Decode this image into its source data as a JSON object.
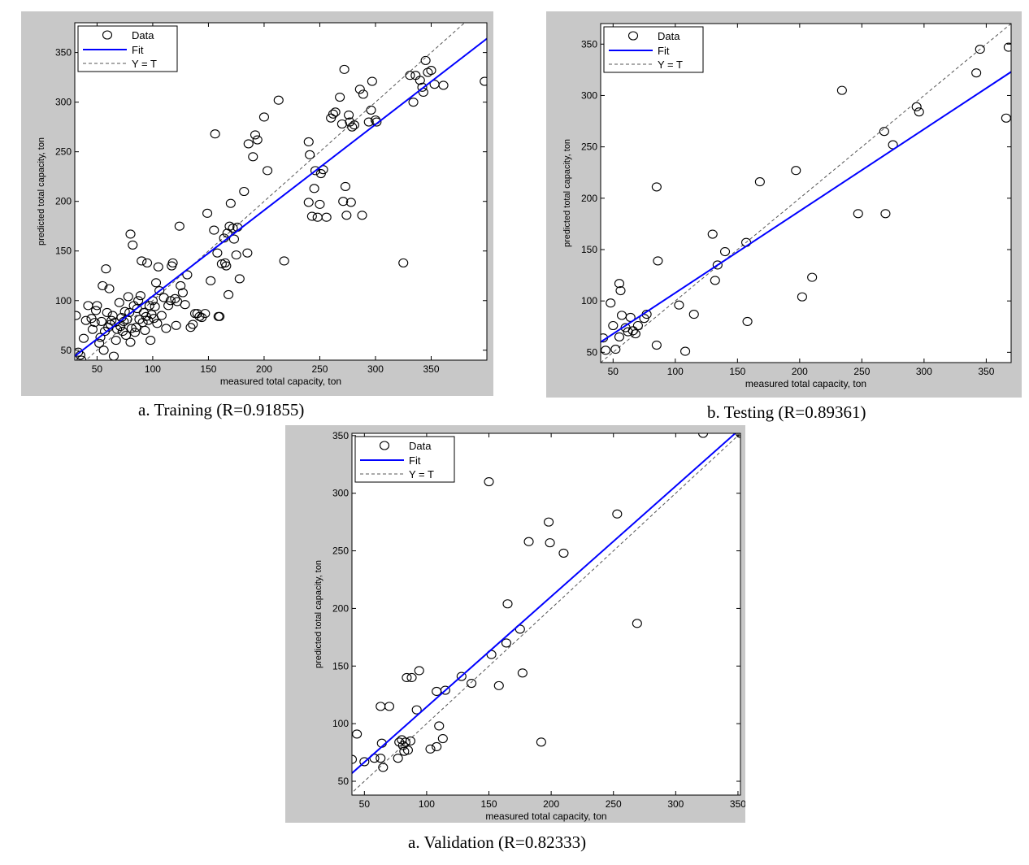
{
  "charts": [
    {
      "caption": "a. Training (R=0.91855)",
      "chart_data": {
        "type": "scatter",
        "xlabel": "measured total capacity, ton",
        "ylabel": "predicted total capacity, ton",
        "xlim": [
          30,
          400
        ],
        "ylim": [
          40,
          380
        ],
        "xticks": [
          50,
          100,
          150,
          200,
          250,
          300,
          350
        ],
        "yticks": [
          50,
          100,
          150,
          200,
          250,
          300,
          350
        ],
        "legend": {
          "placement": "top-left",
          "entries": [
            "Data",
            "Fit",
            "Y = T"
          ]
        },
        "fit": {
          "x": [
            30,
            400
          ],
          "y": [
            44,
            364
          ]
        },
        "points": [
          [
            31,
            85
          ],
          [
            33,
            48
          ],
          [
            35,
            45
          ],
          [
            36,
            40
          ],
          [
            38,
            62
          ],
          [
            40,
            80
          ],
          [
            42,
            95
          ],
          [
            43,
            36
          ],
          [
            45,
            82
          ],
          [
            46,
            71
          ],
          [
            48,
            78
          ],
          [
            49,
            90
          ],
          [
            50,
            95
          ],
          [
            52,
            57
          ],
          [
            53,
            63
          ],
          [
            54,
            79
          ],
          [
            55,
            115
          ],
          [
            56,
            50
          ],
          [
            57,
            69
          ],
          [
            58,
            132
          ],
          [
            59,
            88
          ],
          [
            60,
            73
          ],
          [
            61,
            112
          ],
          [
            62,
            76
          ],
          [
            63,
            80
          ],
          [
            64,
            85
          ],
          [
            65,
            44
          ],
          [
            66,
            78
          ],
          [
            67,
            60
          ],
          [
            68,
            71
          ],
          [
            70,
            98
          ],
          [
            71,
            74
          ],
          [
            72,
            83
          ],
          [
            73,
            69
          ],
          [
            74,
            79
          ],
          [
            75,
            89
          ],
          [
            76,
            65
          ],
          [
            77,
            81
          ],
          [
            78,
            104
          ],
          [
            79,
            88
          ],
          [
            80,
            58
          ],
          [
            80,
            167
          ],
          [
            81,
            72
          ],
          [
            82,
            156
          ],
          [
            83,
            95
          ],
          [
            84,
            68
          ],
          [
            85,
            73
          ],
          [
            86,
            92
          ],
          [
            87,
            100
          ],
          [
            88,
            81
          ],
          [
            89,
            105
          ],
          [
            90,
            140
          ],
          [
            91,
            78
          ],
          [
            92,
            88
          ],
          [
            93,
            70
          ],
          [
            94,
            84
          ],
          [
            95,
            138
          ],
          [
            96,
            80
          ],
          [
            97,
            95
          ],
          [
            98,
            60
          ],
          [
            99,
            86
          ],
          [
            100,
            100
          ],
          [
            101,
            82
          ],
          [
            102,
            94
          ],
          [
            103,
            118
          ],
          [
            104,
            77
          ],
          [
            105,
            134
          ],
          [
            106,
            110
          ],
          [
            108,
            85
          ],
          [
            110,
            103
          ],
          [
            112,
            72
          ],
          [
            114,
            95
          ],
          [
            116,
            100
          ],
          [
            117,
            135
          ],
          [
            118,
            138
          ],
          [
            120,
            102
          ],
          [
            121,
            75
          ],
          [
            122,
            99
          ],
          [
            124,
            175
          ],
          [
            125,
            115
          ],
          [
            127,
            108
          ],
          [
            129,
            96
          ],
          [
            131,
            126
          ],
          [
            134,
            73
          ],
          [
            136,
            76
          ],
          [
            138,
            87
          ],
          [
            140,
            87
          ],
          [
            142,
            84
          ],
          [
            144,
            83
          ],
          [
            147,
            87
          ],
          [
            149,
            188
          ],
          [
            152,
            120
          ],
          [
            155,
            171
          ],
          [
            156,
            268
          ],
          [
            158,
            148
          ],
          [
            159,
            84
          ],
          [
            160,
            84
          ],
          [
            162,
            137
          ],
          [
            164,
            163
          ],
          [
            165,
            138
          ],
          [
            166,
            135
          ],
          [
            167,
            168
          ],
          [
            168,
            106
          ],
          [
            169,
            175
          ],
          [
            170,
            198
          ],
          [
            172,
            173
          ],
          [
            173,
            162
          ],
          [
            175,
            146
          ],
          [
            176,
            174
          ],
          [
            178,
            122
          ],
          [
            182,
            210
          ],
          [
            185,
            148
          ],
          [
            186,
            258
          ],
          [
            190,
            245
          ],
          [
            192,
            267
          ],
          [
            194,
            262
          ],
          [
            200,
            285
          ],
          [
            203,
            231
          ],
          [
            213,
            302
          ],
          [
            218,
            140
          ],
          [
            240,
            199
          ],
          [
            240,
            260
          ],
          [
            241,
            247
          ],
          [
            243,
            185
          ],
          [
            245,
            213
          ],
          [
            246,
            231
          ],
          [
            248,
            184
          ],
          [
            250,
            197
          ],
          [
            251,
            228
          ],
          [
            253,
            232
          ],
          [
            256,
            184
          ],
          [
            260,
            284
          ],
          [
            262,
            288
          ],
          [
            264,
            290
          ],
          [
            268,
            305
          ],
          [
            270,
            278
          ],
          [
            271,
            200
          ],
          [
            272,
            333
          ],
          [
            273,
            215
          ],
          [
            274,
            186
          ],
          [
            276,
            287
          ],
          [
            277,
            280
          ],
          [
            278,
            199
          ],
          [
            279,
            275
          ],
          [
            281,
            277
          ],
          [
            286,
            313
          ],
          [
            288,
            186
          ],
          [
            289,
            308
          ],
          [
            294,
            280
          ],
          [
            296,
            292
          ],
          [
            297,
            321
          ],
          [
            300,
            282
          ],
          [
            301,
            280
          ],
          [
            325,
            138
          ],
          [
            331,
            327
          ],
          [
            334,
            300
          ],
          [
            336,
            327
          ],
          [
            340,
            322
          ],
          [
            342,
            315
          ],
          [
            343,
            310
          ],
          [
            345,
            342
          ],
          [
            347,
            330
          ],
          [
            350,
            332
          ],
          [
            353,
            318
          ],
          [
            361,
            317
          ],
          [
            398,
            321
          ]
        ]
      }
    },
    {
      "caption": "b. Testing (R=0.89361)",
      "chart_data": {
        "type": "scatter",
        "xlabel": "measured total capacity, ton",
        "ylabel": "predicted total capacity, ton",
        "xlim": [
          40,
          370
        ],
        "ylim": [
          40,
          370
        ],
        "xticks": [
          50,
          100,
          150,
          200,
          250,
          300,
          350
        ],
        "yticks": [
          50,
          100,
          150,
          200,
          250,
          300,
          350
        ],
        "legend": {
          "placement": "top-left",
          "entries": [
            "Data",
            "Fit",
            "Y = T"
          ]
        },
        "fit": {
          "x": [
            40,
            370
          ],
          "y": [
            60,
            323
          ]
        },
        "points": [
          [
            42,
            64
          ],
          [
            44,
            52
          ],
          [
            48,
            98
          ],
          [
            50,
            76
          ],
          [
            52,
            53
          ],
          [
            55,
            65
          ],
          [
            55,
            117
          ],
          [
            56,
            110
          ],
          [
            57,
            86
          ],
          [
            60,
            74
          ],
          [
            62,
            70
          ],
          [
            64,
            84
          ],
          [
            66,
            71
          ],
          [
            68,
            68
          ],
          [
            70,
            76
          ],
          [
            75,
            83
          ],
          [
            77,
            87
          ],
          [
            85,
            57
          ],
          [
            85,
            211
          ],
          [
            86,
            139
          ],
          [
            103,
            96
          ],
          [
            108,
            51
          ],
          [
            115,
            87
          ],
          [
            130,
            165
          ],
          [
            132,
            120
          ],
          [
            134,
            135
          ],
          [
            140,
            148
          ],
          [
            157,
            157
          ],
          [
            158,
            80
          ],
          [
            168,
            216
          ],
          [
            197,
            227
          ],
          [
            202,
            104
          ],
          [
            210,
            123
          ],
          [
            234,
            305
          ],
          [
            247,
            185
          ],
          [
            268,
            265
          ],
          [
            269,
            185
          ],
          [
            275,
            252
          ],
          [
            294,
            289
          ],
          [
            296,
            284
          ],
          [
            342,
            322
          ],
          [
            345,
            345
          ],
          [
            366,
            278
          ],
          [
            368,
            347
          ]
        ]
      }
    },
    {
      "caption": "a. Validation (R=0.82333)",
      "chart_data": {
        "type": "scatter",
        "xlabel": "measured total capacity, ton",
        "ylabel": "predicted total capacity, ton",
        "xlim": [
          40,
          352
        ],
        "ylim": [
          38,
          352
        ],
        "xticks": [
          50,
          100,
          150,
          200,
          250,
          300,
          350
        ],
        "yticks": [
          50,
          100,
          150,
          200,
          250,
          300,
          350
        ],
        "legend": {
          "placement": "top-left",
          "entries": [
            "Data",
            "Fit",
            "Y = T"
          ]
        },
        "fit": {
          "x": [
            40,
            352
          ],
          "y": [
            57,
            356
          ]
        },
        "points": [
          [
            40,
            69
          ],
          [
            44,
            91
          ],
          [
            50,
            67
          ],
          [
            58,
            70
          ],
          [
            63,
            115
          ],
          [
            63,
            70
          ],
          [
            64,
            83
          ],
          [
            65,
            62
          ],
          [
            70,
            115
          ],
          [
            77,
            70
          ],
          [
            78,
            84
          ],
          [
            80,
            86
          ],
          [
            81,
            81
          ],
          [
            82,
            76
          ],
          [
            83,
            84
          ],
          [
            84,
            140
          ],
          [
            85,
            77
          ],
          [
            87,
            85
          ],
          [
            88,
            140
          ],
          [
            92,
            112
          ],
          [
            94,
            146
          ],
          [
            103,
            78
          ],
          [
            108,
            80
          ],
          [
            108,
            128
          ],
          [
            110,
            98
          ],
          [
            113,
            87
          ],
          [
            115,
            129
          ],
          [
            128,
            141
          ],
          [
            136,
            135
          ],
          [
            150,
            310
          ],
          [
            152,
            160
          ],
          [
            158,
            133
          ],
          [
            164,
            170
          ],
          [
            165,
            204
          ],
          [
            175,
            182
          ],
          [
            177,
            144
          ],
          [
            182,
            258
          ],
          [
            192,
            84
          ],
          [
            198,
            275
          ],
          [
            199,
            257
          ],
          [
            210,
            248
          ],
          [
            253,
            282
          ],
          [
            269,
            187
          ],
          [
            322,
            352
          ],
          [
            352,
            352
          ]
        ]
      }
    }
  ]
}
